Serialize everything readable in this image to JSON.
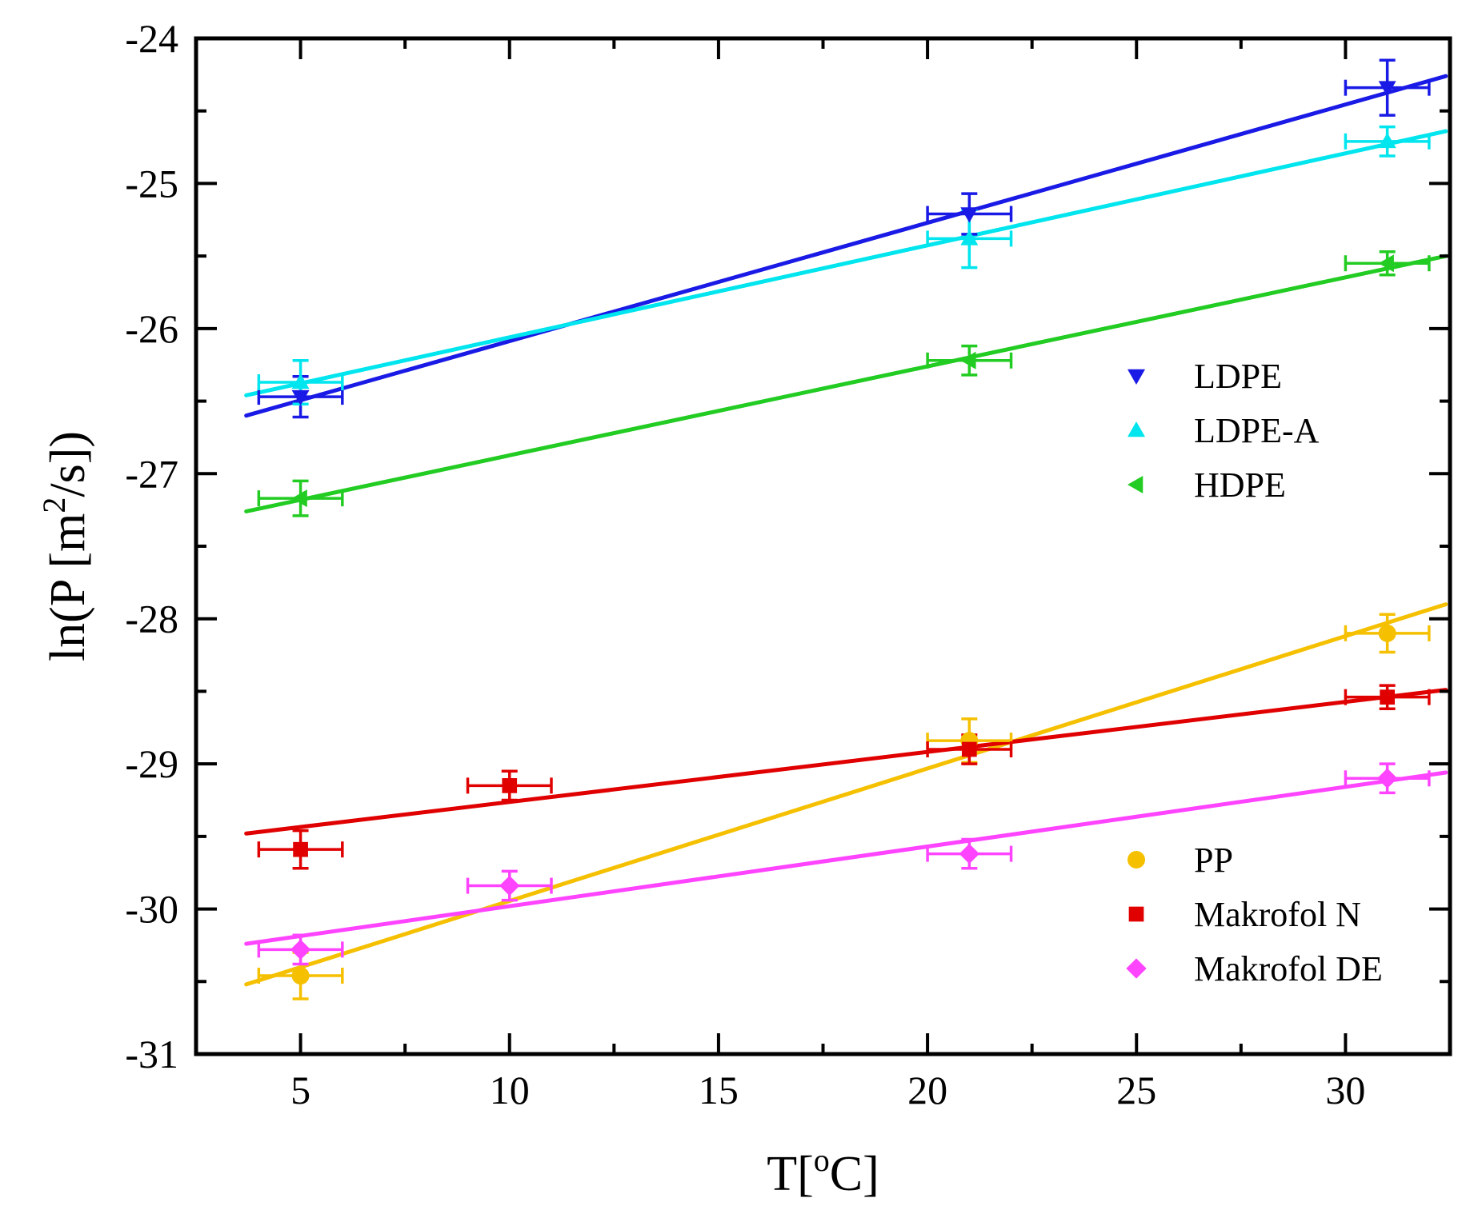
{
  "chart_data": {
    "type": "scatter",
    "title": "",
    "xlabel": {
      "main": "T[",
      "sup": "o",
      "tail": "C]"
    },
    "ylabel": {
      "main": "ln(P [m",
      "sup": "2",
      "tail": "/s])"
    },
    "xlim": [
      2.5,
      32.5
    ],
    "ylim": [
      -31,
      -24
    ],
    "xticks": [
      5,
      10,
      15,
      20,
      25,
      30
    ],
    "yticks": [
      -31,
      -30,
      -29,
      -28,
      -27,
      -26,
      -25,
      -24
    ],
    "xtick_labels": [
      "5",
      "10",
      "15",
      "20",
      "25",
      "30"
    ],
    "ytick_labels": [
      "-31",
      "-30",
      "-29",
      "-28",
      "-27",
      "-26",
      "-25",
      "-24"
    ],
    "xerr": 1,
    "legend_positions": [
      "middle-right",
      "bottom-right"
    ],
    "series": [
      {
        "name": "LDPE",
        "color": "#1a1ae6",
        "marker": "triangle-down",
        "legend_group": 0,
        "x": [
          5,
          21,
          31
        ],
        "y": [
          -26.47,
          -25.21,
          -24.34
        ],
        "yerr": [
          0.14,
          0.14,
          0.19
        ],
        "fit": [
          [
            3.7,
            -26.6
          ],
          [
            32.4,
            -24.26
          ]
        ]
      },
      {
        "name": "LDPE-A",
        "color": "#00e5ee",
        "marker": "triangle-up",
        "legend_group": 0,
        "x": [
          5,
          21,
          31
        ],
        "y": [
          -26.37,
          -25.38,
          -24.71
        ],
        "yerr": [
          0.15,
          0.2,
          0.1
        ],
        "fit": [
          [
            3.7,
            -26.46
          ],
          [
            32.4,
            -24.64
          ]
        ]
      },
      {
        "name": "HDPE",
        "color": "#22cc22",
        "marker": "triangle-left",
        "legend_group": 0,
        "x": [
          5,
          21,
          31
        ],
        "y": [
          -27.17,
          -26.22,
          -25.55
        ],
        "yerr": [
          0.12,
          0.1,
          0.08
        ],
        "fit": [
          [
            3.7,
            -27.26
          ],
          [
            32.4,
            -25.5
          ]
        ]
      },
      {
        "name": "PP",
        "color": "#f5c000",
        "marker": "circle",
        "legend_group": 1,
        "x": [
          5,
          21,
          31
        ],
        "y": [
          -30.46,
          -28.84,
          -28.1
        ],
        "yerr": [
          0.16,
          0.15,
          0.13
        ],
        "fit": [
          [
            3.7,
            -30.52
          ],
          [
            32.4,
            -27.9
          ]
        ]
      },
      {
        "name": "Makrofol N",
        "color": "#e00000",
        "marker": "square",
        "legend_group": 1,
        "x": [
          5,
          10,
          21,
          31
        ],
        "y": [
          -29.59,
          -29.15,
          -28.9,
          -28.54
        ],
        "yerr": [
          0.13,
          0.1,
          0.1,
          0.08
        ],
        "fit": [
          [
            3.7,
            -29.48
          ],
          [
            32.4,
            -28.49
          ]
        ]
      },
      {
        "name": "Makrofol DE",
        "color": "#ff44ff",
        "marker": "diamond",
        "legend_group": 1,
        "x": [
          5,
          10,
          21,
          31
        ],
        "y": [
          -30.28,
          -29.84,
          -29.62,
          -29.1
        ],
        "yerr": [
          0.1,
          0.1,
          0.1,
          0.1
        ],
        "fit": [
          [
            3.7,
            -30.24
          ],
          [
            32.4,
            -29.06
          ]
        ]
      }
    ]
  }
}
